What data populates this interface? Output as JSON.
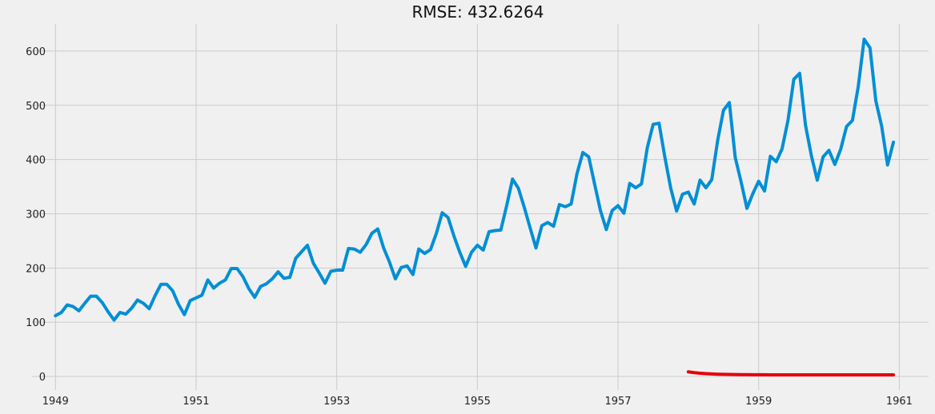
{
  "chart_data": {
    "type": "line",
    "title": "RMSE: 432.6264",
    "xlabel": "",
    "ylabel": "",
    "grid": true,
    "x_ticks": [
      "1949",
      "1951",
      "1953",
      "1955",
      "1957",
      "1959",
      "1961"
    ],
    "y_ticks": [
      0,
      100,
      200,
      300,
      400,
      500,
      600
    ],
    "xlim": [
      "1948-09",
      "1961-06"
    ],
    "ylim": [
      -25,
      650
    ],
    "series": [
      {
        "color": "#008fd5",
        "x_start": "1949-01",
        "frequency": "monthly",
        "values": [
          112,
          118,
          132,
          129,
          121,
          135,
          148,
          148,
          136,
          119,
          104,
          118,
          115,
          126,
          141,
          135,
          125,
          149,
          170,
          170,
          158,
          133,
          114,
          140,
          145,
          150,
          178,
          163,
          172,
          178,
          199,
          199,
          184,
          162,
          146,
          166,
          171,
          180,
          193,
          181,
          183,
          218,
          230,
          242,
          209,
          191,
          172,
          194,
          196,
          196,
          236,
          235,
          229,
          243,
          264,
          272,
          237,
          211,
          180,
          201,
          204,
          188,
          235,
          227,
          234,
          264,
          302,
          293,
          259,
          229,
          203,
          229,
          242,
          233,
          267,
          269,
          270,
          315,
          364,
          347,
          312,
          274,
          237,
          278,
          284,
          277,
          317,
          313,
          318,
          374,
          413,
          405,
          355,
          306,
          271,
          306,
          315,
          301,
          356,
          348,
          355,
          422,
          465,
          467,
          404,
          347,
          305,
          336,
          340,
          318,
          362,
          348,
          363,
          435,
          491,
          505,
          404,
          359,
          310,
          337,
          360,
          342,
          406,
          396,
          420,
          472,
          548,
          559,
          463,
          407,
          362,
          405,
          417,
          391,
          419,
          461,
          472,
          535,
          622,
          606,
          508,
          461,
          390,
          432
        ]
      },
      {
        "color": "#e5000b",
        "x_start": "1958-01",
        "frequency": "monthly",
        "values": [
          8.5,
          7.0,
          6.0,
          5.2,
          4.6,
          4.2,
          3.9,
          3.7,
          3.5,
          3.4,
          3.3,
          3.2,
          3.15,
          3.1,
          3.05,
          3.0,
          3.0,
          3.0,
          3.0,
          3.0,
          3.0,
          3.0,
          3.0,
          3.0,
          3.0,
          3.0,
          3.0,
          3.0,
          3.0,
          3.0,
          3.0,
          3.0,
          3.0,
          3.0,
          3.0,
          3.0
        ]
      }
    ]
  }
}
